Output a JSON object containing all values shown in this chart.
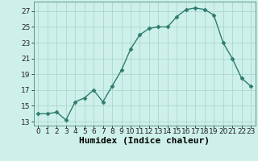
{
  "x": [
    0,
    1,
    2,
    3,
    4,
    5,
    6,
    7,
    8,
    9,
    10,
    11,
    12,
    13,
    14,
    15,
    16,
    17,
    18,
    19,
    20,
    21,
    22,
    23
  ],
  "y": [
    14,
    14,
    14.2,
    13.2,
    15.5,
    16,
    17,
    15.5,
    17.5,
    19.5,
    22.2,
    24,
    24.8,
    25,
    25,
    26.3,
    27.2,
    27.4,
    27.2,
    26.5,
    23,
    21,
    18.5,
    17.5
  ],
  "line_color": "#2e7d6e",
  "marker": "D",
  "marker_size": 2.5,
  "bg_color": "#cef0ea",
  "grid_color": "#a8d8d0",
  "xlabel": "Humidex (Indice chaleur)",
  "ylim": [
    12.5,
    28.2
  ],
  "xlim": [
    -0.5,
    23.5
  ],
  "yticks": [
    13,
    15,
    17,
    19,
    21,
    23,
    25,
    27
  ],
  "xtick_labels": [
    "0",
    "1",
    "2",
    "3",
    "4",
    "5",
    "6",
    "7",
    "8",
    "9",
    "10",
    "11",
    "12",
    "13",
    "14",
    "15",
    "16",
    "17",
    "18",
    "19",
    "20",
    "21",
    "22",
    "23"
  ],
  "tick_fontsize": 6.5,
  "xlabel_fontsize": 8,
  "linewidth": 1.0
}
